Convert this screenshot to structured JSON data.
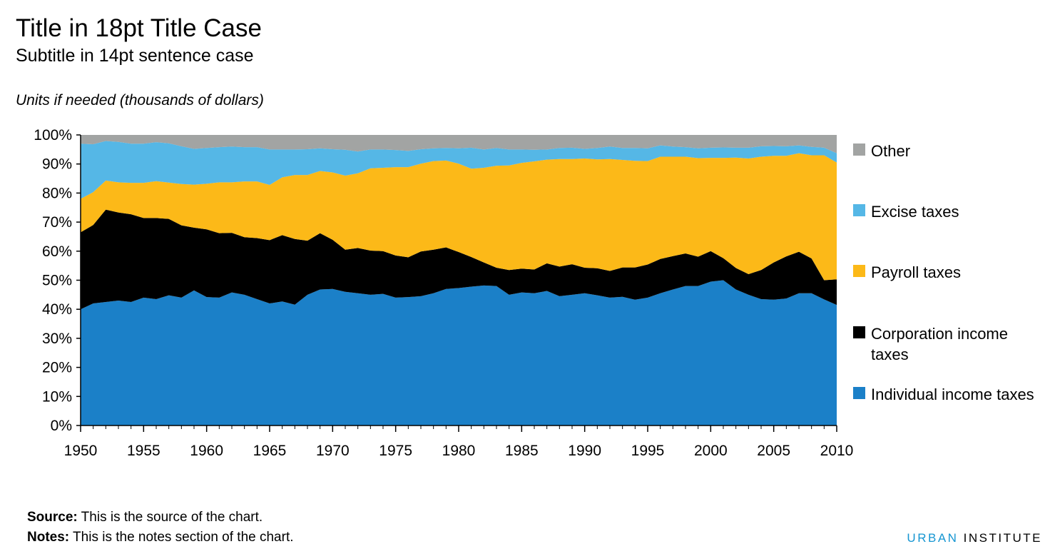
{
  "title": "Title in 18pt Title Case",
  "subtitle": "Subtitle in 14pt sentence case",
  "units": "Units if needed (thousands of dollars)",
  "chart_data": {
    "type": "area",
    "stacked": true,
    "percent": true,
    "x": [
      1950,
      1951,
      1952,
      1953,
      1954,
      1955,
      1956,
      1957,
      1958,
      1959,
      1960,
      1961,
      1962,
      1963,
      1964,
      1965,
      1966,
      1967,
      1968,
      1969,
      1970,
      1971,
      1972,
      1973,
      1974,
      1975,
      1976,
      1977,
      1978,
      1979,
      1980,
      1981,
      1982,
      1983,
      1984,
      1985,
      1986,
      1987,
      1988,
      1989,
      1990,
      1991,
      1992,
      1993,
      1994,
      1995,
      1996,
      1997,
      1998,
      1999,
      2000,
      2001,
      2002,
      2003,
      2004,
      2005,
      2006,
      2007,
      2008,
      2009,
      2010
    ],
    "ylim": [
      0,
      100
    ],
    "y_ticks": [
      "0%",
      "10%",
      "20%",
      "30%",
      "40%",
      "50%",
      "60%",
      "70%",
      "80%",
      "90%",
      "100%"
    ],
    "x_ticks": [
      "1950",
      "1955",
      "1960",
      "1965",
      "1970",
      "1975",
      "1980",
      "1985",
      "1990",
      "1995",
      "2000",
      "2005",
      "2010"
    ],
    "grid": false,
    "legend_position": "right",
    "series": [
      {
        "name": "Individual income taxes",
        "color": "#1b80c8",
        "values": [
          40,
          42,
          42.5,
          43,
          42.5,
          44,
          43.5,
          44.8,
          44,
          46.5,
          44.2,
          44,
          45.8,
          45,
          43.5,
          42,
          42.7,
          41.6,
          45,
          46.8,
          47,
          46,
          45.5,
          45,
          45.3,
          44,
          44.2,
          44.5,
          45.5,
          47,
          47.3,
          47.8,
          48.2,
          48,
          45,
          45.8,
          45.5,
          46.3,
          44.5,
          45,
          45.5,
          44.8,
          44,
          44.3,
          43.3,
          44,
          45.5,
          46.8,
          48,
          48,
          49.5,
          50,
          46.8,
          45,
          43.5,
          43.3,
          43.7,
          45.5,
          45.5,
          43.4,
          41.5
        ]
      },
      {
        "name": "Corporation income taxes",
        "color": "#000000",
        "values": [
          26.5,
          27,
          31.8,
          30.3,
          30.2,
          27.4,
          27.9,
          26.3,
          24.9,
          21.6,
          23.3,
          22.2,
          20.5,
          19.8,
          21,
          21.8,
          22.8,
          22.6,
          18.6,
          19.4,
          16.9,
          14.5,
          15.6,
          15.2,
          14.7,
          14.5,
          13.7,
          15.4,
          15,
          14.3,
          12.4,
          10.2,
          7.9,
          6.3,
          8.5,
          8.2,
          8.2,
          9.5,
          10.2,
          10.5,
          8.8,
          9.3,
          9.2,
          10.1,
          11.1,
          11.4,
          11.8,
          11.5,
          11.2,
          10.1,
          10.5,
          7.6,
          7.4,
          7.1,
          10,
          12.8,
          14.5,
          14.3,
          12,
          6.6,
          8.8
        ]
      },
      {
        "name": "Payroll taxes",
        "color": "#fcb918",
        "values": [
          11.5,
          11.3,
          10,
          10.4,
          10.8,
          12.1,
          12.7,
          12.5,
          14.2,
          14.8,
          15.7,
          17.5,
          17.4,
          19.2,
          19.5,
          19,
          19.9,
          22,
          22.6,
          21.4,
          23.2,
          25.5,
          25.7,
          28.3,
          28.7,
          30.4,
          31,
          30.2,
          30.5,
          29.9,
          30.4,
          30.4,
          32.6,
          35.1,
          36,
          36.4,
          37.2,
          35.7,
          37,
          36.2,
          37.6,
          37.5,
          38.5,
          37,
          36.7,
          35.6,
          35.2,
          34.2,
          33.3,
          33.9,
          32.1,
          34.5,
          38,
          39.8,
          39,
          36.7,
          34.6,
          33.9,
          35.5,
          43,
          40.2
        ]
      },
      {
        "name": "Excise taxes",
        "color": "#55b7e6",
        "values": [
          19,
          16.5,
          13.6,
          13.9,
          13.5,
          13.5,
          13.4,
          13.5,
          13,
          12.3,
          12.3,
          12.1,
          12.3,
          11.8,
          11.8,
          12.2,
          9.6,
          8.8,
          8.9,
          7.8,
          8,
          8.9,
          7.5,
          6.5,
          6.3,
          5.9,
          5.6,
          5,
          4.4,
          4.3,
          5.3,
          7.2,
          6.3,
          6.1,
          5.5,
          4.6,
          4,
          3.5,
          3.8,
          3.9,
          3.3,
          3.9,
          4.3,
          4.1,
          4.4,
          4.4,
          3.9,
          3.5,
          3.3,
          3.4,
          3.5,
          3.6,
          3.4,
          3.7,
          3.6,
          3.4,
          3.3,
          2.7,
          2.9,
          2.6,
          3.2
        ]
      },
      {
        "name": "Other",
        "color": "#a2a4a3",
        "values": [
          3,
          3.2,
          2.1,
          2.4,
          3,
          3,
          2.5,
          2.9,
          3.9,
          4.8,
          4.5,
          4.2,
          4,
          4.2,
          4.2,
          5,
          5,
          5,
          4.9,
          4.6,
          4.9,
          5.1,
          5.7,
          5,
          5,
          5.2,
          5.5,
          4.9,
          4.6,
          4.5,
          4.6,
          4.4,
          5,
          4.5,
          5,
          5,
          5.1,
          5,
          4.5,
          4.4,
          4.8,
          4.5,
          4,
          4.5,
          4.5,
          4.6,
          3.6,
          4,
          4.2,
          4.6,
          4.4,
          4.3,
          4.4,
          4.4,
          3.9,
          3.8,
          3.9,
          3.6,
          4.1,
          4.4,
          6.3
        ]
      }
    ]
  },
  "source_label": "Source:",
  "source_text": " This is the source of the chart.",
  "notes_label": "Notes:",
  "notes_text": " This is the notes section of the chart.",
  "brand_part1": "URBAN",
  "brand_part2": " INSTITUTE"
}
